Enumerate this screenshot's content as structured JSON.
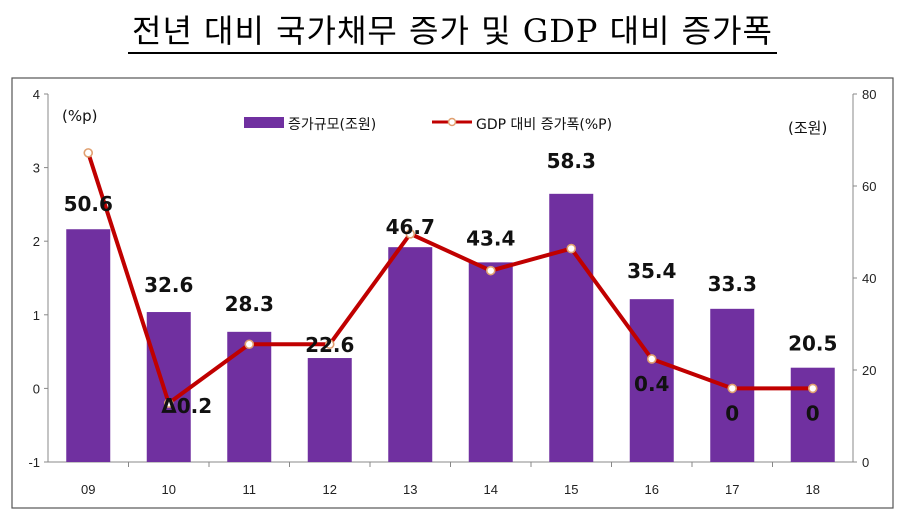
{
  "title": "전년 대비 국가채무 증가 및 GDP 대비 증가폭",
  "chart_data": {
    "type": "bar+line",
    "categories": [
      "09",
      "10",
      "11",
      "12",
      "13",
      "14",
      "15",
      "16",
      "17",
      "18"
    ],
    "bar_series": {
      "name": "증가규모(조원)",
      "axis": "right",
      "values": [
        50.6,
        32.6,
        28.3,
        22.6,
        46.7,
        43.4,
        58.3,
        35.4,
        33.3,
        20.5
      ],
      "labels": [
        "50.6",
        "32.6",
        "28.3",
        "22.6",
        "46.7",
        "43.4",
        "58.3",
        "35.4",
        "33.3",
        "20.5"
      ],
      "color": "#7030a0"
    },
    "line_series": {
      "name": "GDP 대비 증가폭(%P)",
      "axis": "left",
      "values": [
        3.2,
        -0.2,
        0.6,
        0.6,
        2.1,
        1.6,
        1.9,
        0.4,
        0.0,
        0.0
      ],
      "labels": [
        "",
        "Δ0.2",
        "",
        "",
        "",
        "",
        "",
        "0.4",
        "0",
        "0"
      ],
      "color": "#c00000"
    },
    "left_axis": {
      "unit": "(%p)",
      "min": -1,
      "max": 4,
      "ticks": [
        "-1",
        "0",
        "1",
        "2",
        "3",
        "4"
      ]
    },
    "right_axis": {
      "unit": "(조원)",
      "min": 0,
      "max": 80,
      "ticks": [
        "0",
        "20",
        "40",
        "60",
        "80"
      ]
    },
    "legend_position": "top-center"
  }
}
